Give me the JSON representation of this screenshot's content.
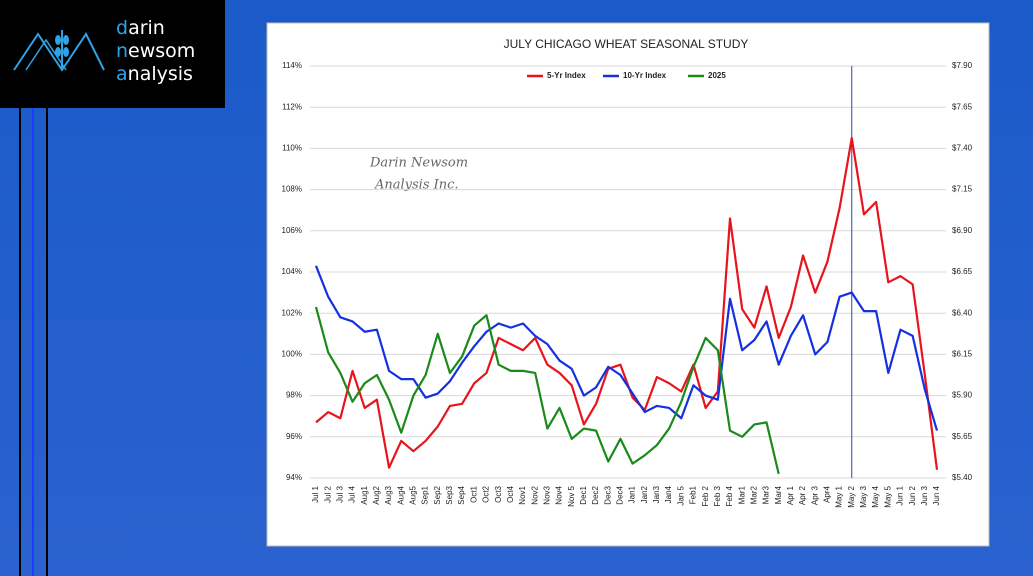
{
  "logo": {
    "lines": [
      "darin",
      "newsom",
      "analysis"
    ]
  },
  "chart_data": {
    "type": "line",
    "title": "JULY CHICAGO WHEAT SEASONAL STUDY",
    "annotations": [
      "Darin Newsom",
      "Analysis Inc."
    ],
    "vline_category": "May 2",
    "categories": [
      "Jul 1",
      "Jul 2",
      "Jul 3",
      "Jul 4",
      "Aug1",
      "Aug2",
      "Aug3",
      "Aug4",
      "Aug5",
      "Sep1",
      "Sep2",
      "Sep3",
      "Sep4",
      "Oct1",
      "Oct2",
      "Oct3",
      "Oct4",
      "Nov1",
      "Nov2",
      "Nov3",
      "Nov4",
      "Nov 5",
      "Dec1",
      "Dec2",
      "Dec3",
      "Dec4",
      "Jan1",
      "Jan2",
      "Jan3",
      "Jan4",
      "Jan 5",
      "Feb1",
      "Feb 2",
      "Feb 3",
      "Feb 4",
      "Mar1",
      "Mar2",
      "Mar3",
      "Mar4",
      "Apr 1",
      "Apr 2",
      "Apr 3",
      "Apr4",
      "May 1",
      "May 2",
      "May 3",
      "May 4",
      "May 5",
      "Jun 1",
      "Jun 2",
      "Jun 3",
      "Jun 4"
    ],
    "series": [
      {
        "name": "5-Yr Index",
        "color": "#e8141c",
        "values": [
          96.7,
          97.2,
          96.9,
          99.2,
          97.4,
          97.8,
          94.5,
          95.8,
          95.3,
          95.8,
          96.5,
          97.5,
          97.6,
          98.6,
          99.1,
          100.8,
          100.5,
          100.2,
          100.8,
          99.5,
          99.1,
          98.5,
          96.6,
          97.6,
          99.3,
          99.5,
          97.9,
          97.3,
          98.9,
          98.6,
          98.2,
          99.5,
          97.4,
          98.2,
          106.6,
          102.2,
          101.3,
          103.3,
          100.8,
          102.3,
          104.8,
          103.0,
          104.5,
          107.1,
          110.5,
          106.8,
          107.4,
          103.5,
          103.8,
          103.4,
          99.0,
          94.4
        ]
      },
      {
        "name": "10-Yr Index",
        "color": "#1530e0",
        "values": [
          104.3,
          102.8,
          101.8,
          101.6,
          101.1,
          101.2,
          99.2,
          98.8,
          98.8,
          97.9,
          98.1,
          98.7,
          99.6,
          100.4,
          101.1,
          101.5,
          101.3,
          101.5,
          100.9,
          100.5,
          99.7,
          99.3,
          98.0,
          98.4,
          99.4,
          99.0,
          98.1,
          97.2,
          97.5,
          97.4,
          96.9,
          98.5,
          98.0,
          97.8,
          102.7,
          100.2,
          100.7,
          101.6,
          99.5,
          100.9,
          101.9,
          100.0,
          100.6,
          102.8,
          103.0,
          102.1,
          102.1,
          99.1,
          101.2,
          100.9,
          98.3,
          96.3
        ]
      },
      {
        "name": "2025",
        "color": "#1a8a1a",
        "values": [
          102.3,
          100.1,
          99.1,
          97.7,
          98.6,
          99.0,
          97.8,
          96.2,
          98.0,
          99.0,
          101.0,
          99.1,
          99.9,
          101.4,
          101.9,
          99.5,
          99.2,
          99.2,
          99.1,
          96.4,
          97.4,
          95.9,
          96.4,
          96.3,
          94.8,
          95.9,
          94.7,
          95.1,
          95.6,
          96.4,
          97.7,
          99.4,
          100.8,
          100.2,
          96.3,
          96.0,
          96.6,
          96.7,
          94.2,
          null,
          null,
          null,
          null,
          null,
          null,
          null,
          null,
          null,
          null,
          null,
          null,
          null
        ]
      }
    ],
    "ylim": [
      94,
      114
    ],
    "yticks": [
      {
        "value": 94,
        "label": "94%"
      },
      {
        "value": 96,
        "label": "96%"
      },
      {
        "value": 98,
        "label": "98%"
      },
      {
        "value": 100,
        "label": "100%"
      },
      {
        "value": 102,
        "label": "102%"
      },
      {
        "value": 104,
        "label": "104%"
      },
      {
        "value": 106,
        "label": "106%"
      },
      {
        "value": 108,
        "label": "108%"
      },
      {
        "value": 110,
        "label": "110%"
      },
      {
        "value": 112,
        "label": "112%"
      },
      {
        "value": 114,
        "label": "114%"
      }
    ],
    "y2lim": [
      5.4,
      7.9
    ],
    "y2ticks": [
      {
        "value": 5.4,
        "label": "$5.40"
      },
      {
        "value": 5.65,
        "label": "$5.65"
      },
      {
        "value": 5.9,
        "label": "$5.90"
      },
      {
        "value": 6.15,
        "label": "$6.15"
      },
      {
        "value": 6.4,
        "label": "$6.40"
      },
      {
        "value": 6.65,
        "label": "$6.65"
      },
      {
        "value": 6.9,
        "label": "$6.90"
      },
      {
        "value": 7.15,
        "label": "$7.15"
      },
      {
        "value": 7.4,
        "label": "$7.40"
      },
      {
        "value": 7.65,
        "label": "$7.65"
      },
      {
        "value": 7.9,
        "label": "$7.90"
      }
    ],
    "grid": true
  }
}
